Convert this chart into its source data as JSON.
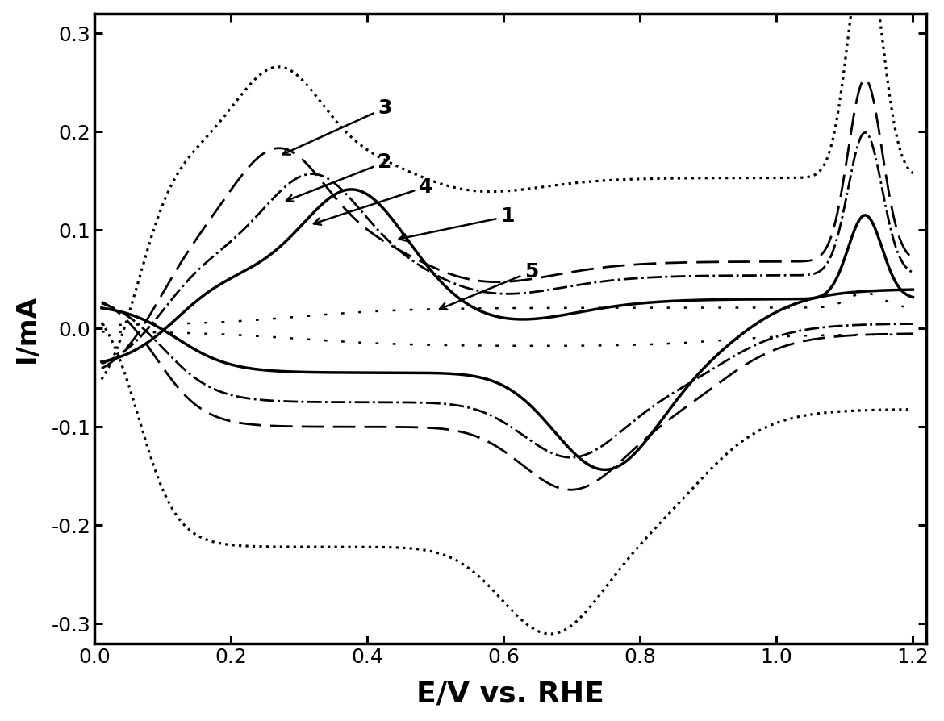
{
  "xlabel": "E/V vs. RHE",
  "ylabel": "I/mA",
  "xlim": [
    0.0,
    1.22
  ],
  "ylim": [
    -0.32,
    0.32
  ],
  "xticks": [
    0.0,
    0.2,
    0.4,
    0.6,
    0.8,
    1.0,
    1.2
  ],
  "yticks": [
    -0.3,
    -0.2,
    -0.1,
    0.0,
    0.1,
    0.2,
    0.3
  ],
  "background_color": "#ffffff",
  "line_color": "#000000",
  "lw_solid": 2.5,
  "lw_other": 2.0,
  "annotation_fontsize": 18
}
